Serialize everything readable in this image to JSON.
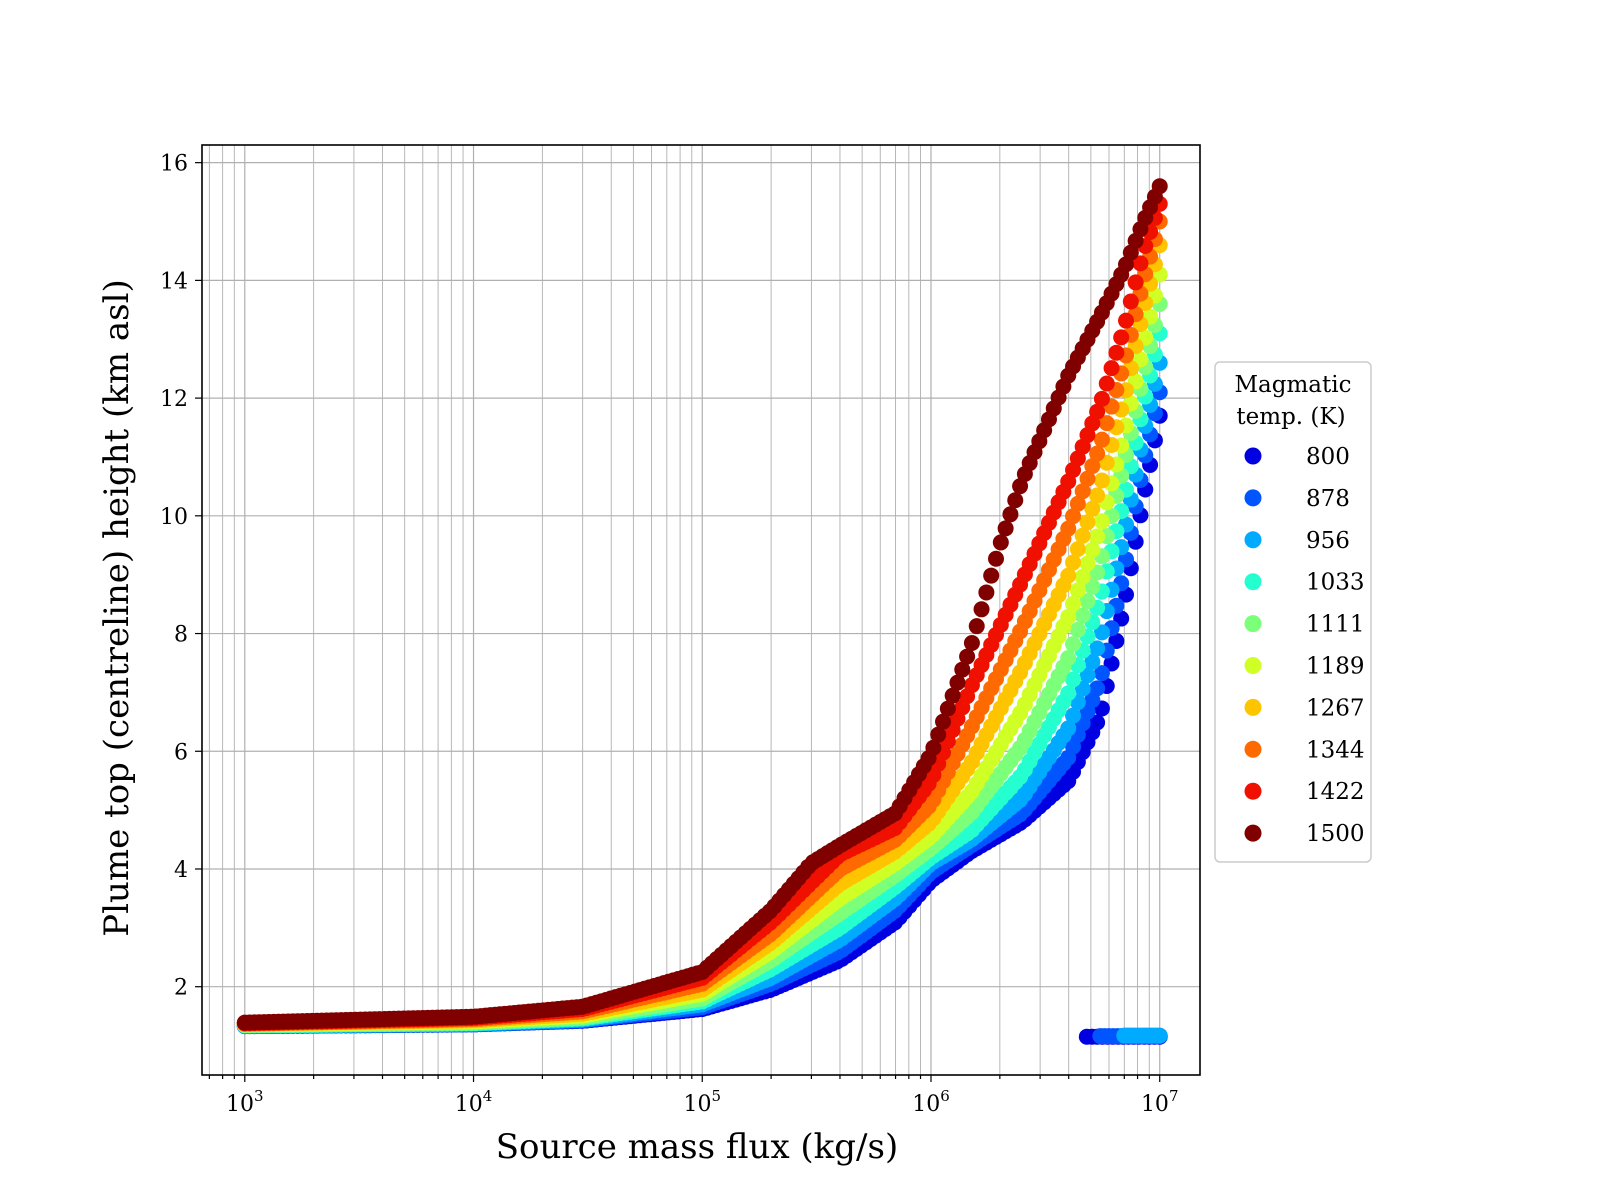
{
  "chart_data": {
    "type": "scatter",
    "title": "",
    "xlabel": "Source mass flux (kg/s)",
    "ylabel": "Plume top (centreline) height (km asl)",
    "xscale": "log",
    "xlim": [
      650,
      15000000
    ],
    "ylim": [
      0.5,
      16.3
    ],
    "grid": true,
    "grid_minor_x": true,
    "legend_placement": "outside-right",
    "x_ticks": [
      {
        "value": 1000,
        "base": "10",
        "exp": "3"
      },
      {
        "value": 10000,
        "base": "10",
        "exp": "4"
      },
      {
        "value": 100000,
        "base": "10",
        "exp": "5"
      },
      {
        "value": 1000000,
        "base": "10",
        "exp": "6"
      },
      {
        "value": 10000000,
        "base": "10",
        "exp": "7"
      }
    ],
    "y_ticks": [
      2,
      4,
      6,
      8,
      10,
      12,
      14,
      16
    ],
    "legend": {
      "title_lines": [
        "Magmatic",
        "temp. (K)"
      ],
      "entries": [
        {
          "label": "800",
          "color": "#0000e0"
        },
        {
          "label": "878",
          "color": "#0055ff"
        },
        {
          "label": "956",
          "color": "#00aaff"
        },
        {
          "label": "1033",
          "color": "#25ffd0"
        },
        {
          "label": "1111",
          "color": "#7cff79"
        },
        {
          "label": "1189",
          "color": "#d0ff25"
        },
        {
          "label": "1267",
          "color": "#ffc400"
        },
        {
          "label": "1344",
          "color": "#ff6a00"
        },
        {
          "label": "1422",
          "color": "#f01000"
        },
        {
          "label": "1500",
          "color": "#800000"
        }
      ]
    },
    "series": [
      {
        "temp": "800",
        "color": "#0000e0",
        "points": [
          [
            1000,
            1.33
          ],
          [
            10000,
            1.36
          ],
          [
            30000,
            1.42
          ],
          [
            100000,
            1.62
          ],
          [
            200000,
            1.95
          ],
          [
            400000,
            2.45
          ],
          [
            700000,
            3.1
          ],
          [
            1000000,
            3.8
          ],
          [
            1500000,
            4.3
          ],
          [
            2500000,
            4.8
          ],
          [
            4000000,
            5.5
          ],
          [
            5500000,
            6.6
          ],
          [
            7000000,
            8.5
          ],
          [
            8500000,
            10.3
          ],
          [
            10000000,
            11.7
          ]
        ],
        "collapsed": [
          [
            4800000,
            1.15
          ],
          [
            10000000,
            1.15
          ]
        ]
      },
      {
        "temp": "878",
        "color": "#0055ff",
        "points": [
          [
            1000,
            1.33
          ],
          [
            10000,
            1.36
          ],
          [
            30000,
            1.43
          ],
          [
            100000,
            1.65
          ],
          [
            200000,
            2.05
          ],
          [
            400000,
            2.6
          ],
          [
            700000,
            3.3
          ],
          [
            1000000,
            3.95
          ],
          [
            1500000,
            4.4
          ],
          [
            2500000,
            4.95
          ],
          [
            4000000,
            5.9
          ],
          [
            5500000,
            7.2
          ],
          [
            7000000,
            9.1
          ],
          [
            8500000,
            10.9
          ],
          [
            10000000,
            12.1
          ]
        ],
        "collapsed": [
          [
            5500000,
            1.16
          ],
          [
            10000000,
            1.16
          ]
        ]
      },
      {
        "temp": "956",
        "color": "#00aaff",
        "points": [
          [
            1000,
            1.34
          ],
          [
            10000,
            1.37
          ],
          [
            30000,
            1.44
          ],
          [
            100000,
            1.7
          ],
          [
            200000,
            2.15
          ],
          [
            400000,
            2.8
          ],
          [
            700000,
            3.5
          ],
          [
            1000000,
            4.1
          ],
          [
            1500000,
            4.5
          ],
          [
            2500000,
            5.2
          ],
          [
            4000000,
            6.4
          ],
          [
            5500000,
            7.9
          ],
          [
            7000000,
            9.7
          ],
          [
            8500000,
            11.4
          ],
          [
            10000000,
            12.6
          ]
        ],
        "collapsed": [
          [
            7000000,
            1.17
          ],
          [
            10000000,
            1.17
          ]
        ]
      },
      {
        "temp": "1033",
        "color": "#25ffd0",
        "points": [
          [
            1000,
            1.34
          ],
          [
            10000,
            1.38
          ],
          [
            30000,
            1.46
          ],
          [
            100000,
            1.75
          ],
          [
            200000,
            2.3
          ],
          [
            400000,
            3.0
          ],
          [
            700000,
            3.7
          ],
          [
            1000000,
            4.2
          ],
          [
            1500000,
            4.65
          ],
          [
            2500000,
            5.6
          ],
          [
            4000000,
            7.0
          ],
          [
            5500000,
            8.6
          ],
          [
            7000000,
            10.3
          ],
          [
            8500000,
            11.9
          ],
          [
            10000000,
            13.1
          ]
        ]
      },
      {
        "temp": "1111",
        "color": "#7cff79",
        "points": [
          [
            1000,
            1.35
          ],
          [
            10000,
            1.39
          ],
          [
            30000,
            1.48
          ],
          [
            100000,
            1.8
          ],
          [
            200000,
            2.45
          ],
          [
            400000,
            3.25
          ],
          [
            700000,
            3.9
          ],
          [
            1000000,
            4.35
          ],
          [
            1500000,
            4.95
          ],
          [
            2500000,
            6.1
          ],
          [
            4000000,
            7.6
          ],
          [
            5500000,
            9.2
          ],
          [
            7000000,
            10.9
          ],
          [
            8500000,
            12.4
          ],
          [
            10000000,
            13.6
          ]
        ]
      },
      {
        "temp": "1189",
        "color": "#d0ff25",
        "points": [
          [
            1000,
            1.36
          ],
          [
            10000,
            1.41
          ],
          [
            30000,
            1.51
          ],
          [
            100000,
            1.88
          ],
          [
            200000,
            2.6
          ],
          [
            400000,
            3.5
          ],
          [
            700000,
            4.1
          ],
          [
            1000000,
            4.55
          ],
          [
            1500000,
            5.3
          ],
          [
            2500000,
            6.7
          ],
          [
            4000000,
            8.3
          ],
          [
            5500000,
            9.8
          ],
          [
            7000000,
            11.4
          ],
          [
            8500000,
            12.9
          ],
          [
            10000000,
            14.1
          ]
        ]
      },
      {
        "temp": "1267",
        "color": "#ffc400",
        "points": [
          [
            1000,
            1.37
          ],
          [
            10000,
            1.43
          ],
          [
            30000,
            1.54
          ],
          [
            100000,
            1.95
          ],
          [
            200000,
            2.75
          ],
          [
            400000,
            3.75
          ],
          [
            700000,
            4.3
          ],
          [
            1000000,
            4.8
          ],
          [
            1500000,
            5.8
          ],
          [
            2500000,
            7.4
          ],
          [
            4000000,
            9.0
          ],
          [
            5500000,
            10.5
          ],
          [
            7000000,
            12.0
          ],
          [
            8500000,
            13.5
          ],
          [
            10000000,
            14.6
          ]
        ]
      },
      {
        "temp": "1344",
        "color": "#ff6a00",
        "points": [
          [
            1000,
            1.37
          ],
          [
            10000,
            1.45
          ],
          [
            30000,
            1.58
          ],
          [
            100000,
            2.05
          ],
          [
            200000,
            2.9
          ],
          [
            400000,
            4.0
          ],
          [
            700000,
            4.5
          ],
          [
            1000000,
            5.1
          ],
          [
            1500000,
            6.4
          ],
          [
            2500000,
            8.1
          ],
          [
            4000000,
            9.8
          ],
          [
            5500000,
            11.2
          ],
          [
            7000000,
            12.6
          ],
          [
            8500000,
            14.0
          ],
          [
            10000000,
            15.0
          ]
        ]
      },
      {
        "temp": "1422",
        "color": "#f01000",
        "points": [
          [
            1000,
            1.38
          ],
          [
            10000,
            1.47
          ],
          [
            30000,
            1.62
          ],
          [
            100000,
            2.15
          ],
          [
            200000,
            3.1
          ],
          [
            400000,
            4.25
          ],
          [
            700000,
            4.7
          ],
          [
            1000000,
            5.5
          ],
          [
            1500000,
            7.1
          ],
          [
            2500000,
            8.9
          ],
          [
            4000000,
            10.6
          ],
          [
            5500000,
            11.9
          ],
          [
            7000000,
            13.2
          ],
          [
            8500000,
            14.5
          ],
          [
            10000000,
            15.3
          ]
        ]
      },
      {
        "temp": "1500",
        "color": "#800000",
        "points": [
          [
            1000,
            1.39
          ],
          [
            10000,
            1.49
          ],
          [
            30000,
            1.66
          ],
          [
            100000,
            2.25
          ],
          [
            200000,
            3.3
          ],
          [
            300000,
            4.1
          ],
          [
            400000,
            4.4
          ],
          [
            700000,
            4.95
          ],
          [
            1000000,
            5.95
          ],
          [
            1500000,
            7.8
          ],
          [
            2000000,
            9.5
          ],
          [
            2500000,
            10.6
          ],
          [
            4000000,
            12.4
          ],
          [
            5500000,
            13.4
          ],
          [
            7000000,
            14.2
          ],
          [
            8500000,
            15.0
          ],
          [
            10000000,
            15.6
          ]
        ]
      }
    ]
  }
}
